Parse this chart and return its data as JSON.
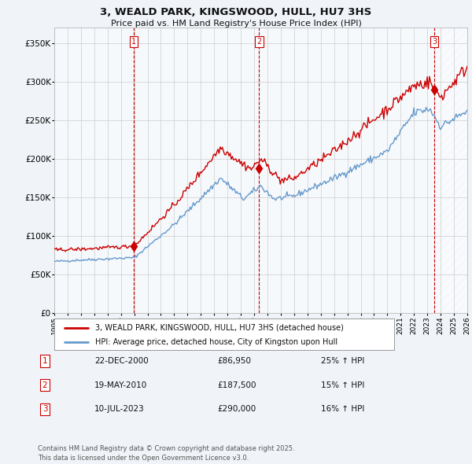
{
  "title": "3, WEALD PARK, KINGSWOOD, HULL, HU7 3HS",
  "subtitle": "Price paid vs. HM Land Registry's House Price Index (HPI)",
  "background_color": "#f0f4f8",
  "plot_bg_color": "#ffffff",
  "grid_color": "#cccccc",
  "sale_color": "#cc0000",
  "hpi_color": "#6699cc",
  "vline_color": "#cc0000",
  "shade_color": "#dce8f5",
  "hatch_color": "#c0d4e8",
  "ylim": [
    0,
    370000
  ],
  "yticks": [
    0,
    50000,
    100000,
    150000,
    200000,
    250000,
    300000,
    350000
  ],
  "ytick_labels": [
    "£0",
    "£50K",
    "£100K",
    "£150K",
    "£200K",
    "£250K",
    "£300K",
    "£350K"
  ],
  "sale_dates": [
    2000.97,
    2010.38,
    2023.52
  ],
  "sale_prices": [
    86950,
    187500,
    290000
  ],
  "sale_labels": [
    "1",
    "2",
    "3"
  ],
  "legend_sale": "3, WEALD PARK, KINGSWOOD, HULL, HU7 3HS (detached house)",
  "legend_hpi": "HPI: Average price, detached house, City of Kingston upon Hull",
  "table_data": [
    [
      "1",
      "22-DEC-2000",
      "£86,950",
      "25% ↑ HPI"
    ],
    [
      "2",
      "19-MAY-2010",
      "£187,500",
      "15% ↑ HPI"
    ],
    [
      "3",
      "10-JUL-2023",
      "£290,000",
      "16% ↑ HPI"
    ]
  ],
  "footer": "Contains HM Land Registry data © Crown copyright and database right 2025.\nThis data is licensed under the Open Government Licence v3.0.",
  "xmin": 1995,
  "xmax": 2026
}
